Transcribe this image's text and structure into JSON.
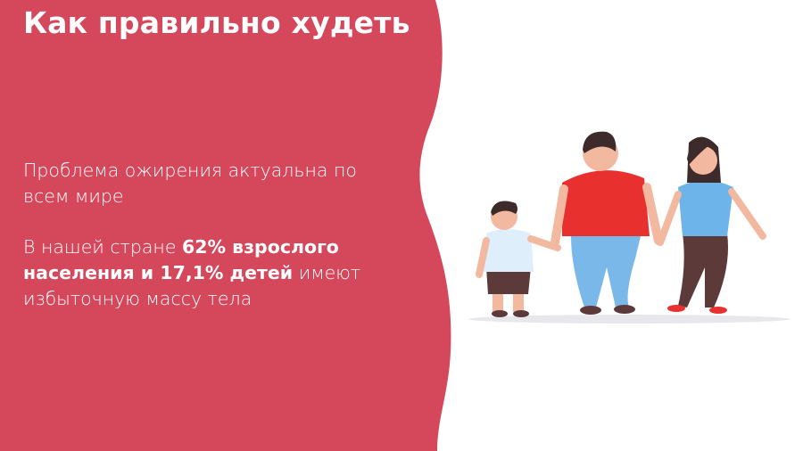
{
  "slide": {
    "title": "Как правильно худеть",
    "paragraph1": "Проблема ожирения актуальна по всем мире",
    "paragraph2": {
      "prefix": "В нашей стране ",
      "bold1": "62% взрослого населения и 17,1% детей",
      "suffix": " имеют избыточную массу тела"
    }
  },
  "colors": {
    "panel": "#d5475b",
    "text": "#ffffff"
  },
  "illustration": "family-walking-illustration"
}
